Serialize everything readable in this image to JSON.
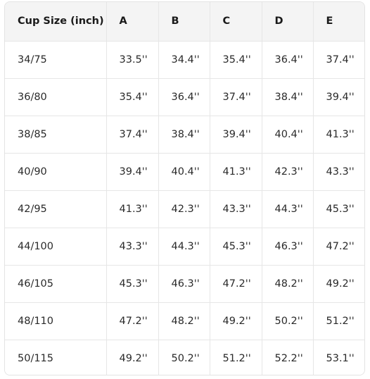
{
  "table": {
    "headers": [
      "Cup Size (inch)",
      "A",
      "B",
      "C",
      "D",
      "E"
    ],
    "rows": [
      [
        "34/75",
        "33.5''",
        "34.4''",
        "35.4''",
        "36.4''",
        "37.4''"
      ],
      [
        "36/80",
        "35.4''",
        "36.4''",
        "37.4''",
        "38.4''",
        "39.4''"
      ],
      [
        "38/85",
        "37.4''",
        "38.4''",
        "39.4''",
        "40.4''",
        "41.3''"
      ],
      [
        "40/90",
        "39.4''",
        "40.4''",
        "41.3''",
        "42.3''",
        "43.3''"
      ],
      [
        "42/95",
        "41.3''",
        "42.3''",
        "43.3''",
        "44.3''",
        "45.3''"
      ],
      [
        "44/100",
        "43.3''",
        "44.3''",
        "45.3''",
        "46.3''",
        "47.2''"
      ],
      [
        "46/105",
        "45.3''",
        "46.3''",
        "47.2''",
        "48.2''",
        "49.2''"
      ],
      [
        "48/110",
        "47.2''",
        "48.2''",
        "49.2''",
        "50.2''",
        "51.2''"
      ],
      [
        "50/115",
        "49.2''",
        "50.2''",
        "51.2''",
        "52.2''",
        "53.1''"
      ]
    ]
  }
}
